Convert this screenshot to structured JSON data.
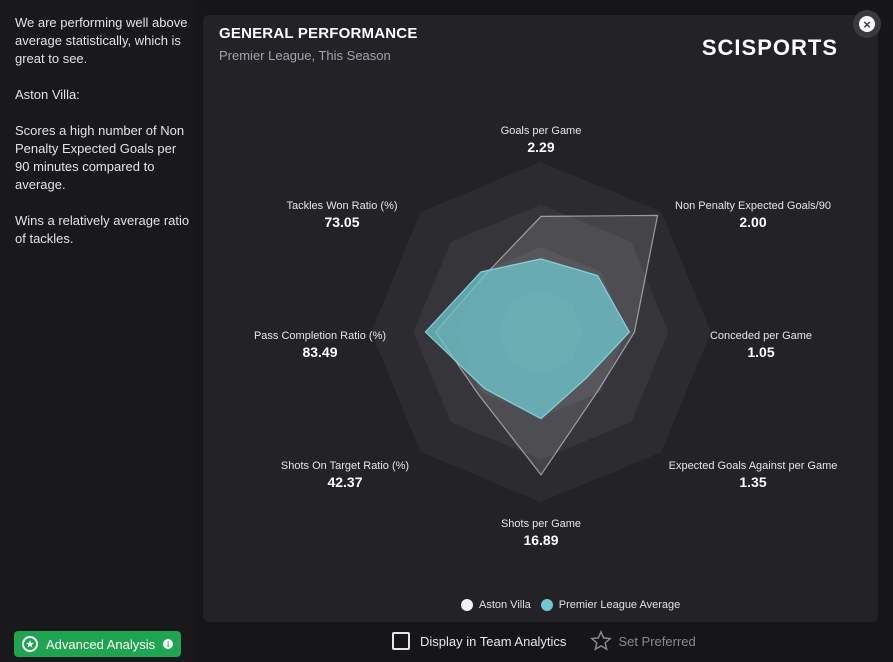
{
  "summary": {
    "p1": "We are performing well above average statistically, which is great to see.",
    "p2": "Aston Villa:",
    "p3": "Scores a high number of Non Penalty Expected Goals per 90 minutes compared to average.",
    "p4": "Wins a relatively average ratio of tackles."
  },
  "advanced_button": {
    "label": "Advanced Analysis"
  },
  "card": {
    "title": "GENERAL PERFORMANCE",
    "subtitle": "Premier League, This Season",
    "brand": "SCISPORTS"
  },
  "chart_data": {
    "type": "radar",
    "axes": [
      {
        "label": "Goals per Game",
        "value": "2.29"
      },
      {
        "label": "Non Penalty Expected Goals/90",
        "value": "2.00"
      },
      {
        "label": "Conceded per Game",
        "value": "1.05"
      },
      {
        "label": "Expected Goals Against per Game",
        "value": "1.35"
      },
      {
        "label": "Shots per Game",
        "value": "16.89"
      },
      {
        "label": "Shots On Target Ratio (%)",
        "value": "42.37"
      },
      {
        "label": "Pass Completion Ratio (%)",
        "value": "83.49"
      },
      {
        "label": "Tackles Won Ratio (%)",
        "value": "73.05"
      }
    ],
    "series": [
      {
        "name": "Aston Villa",
        "color": "#f2f2f2",
        "values": [
          0.68,
          0.97,
          0.55,
          0.48,
          0.84,
          0.52,
          0.62,
          0.47
        ]
      },
      {
        "name": "Premier League Average",
        "color": "#6fc8cf",
        "values": [
          0.43,
          0.47,
          0.52,
          0.38,
          0.51,
          0.47,
          0.68,
          0.5
        ]
      }
    ],
    "rings": 4
  },
  "bottom": {
    "display_label": "Display in Team Analytics",
    "preferred_label": "Set Preferred"
  }
}
